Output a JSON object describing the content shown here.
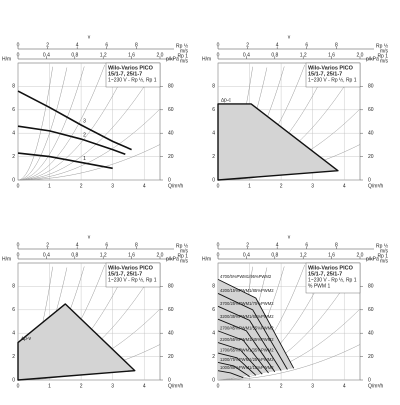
{
  "chart_data": [
    {
      "type": "line",
      "title": "Wilo-Varios PICO",
      "subtitle": "15/1-7, 25/1-7",
      "note": "1~230 V - Rp ½, Rp 1",
      "velocity_label": "v",
      "top_axes": [
        {
          "unit": "m/s",
          "pipe": "Rp ½",
          "lim": [
            0,
            9.6
          ],
          "ticks": [
            0,
            2,
            4,
            6,
            8
          ]
        },
        {
          "unit": "m/s",
          "pipe": "Rp 1",
          "lim": [
            0,
            2.0
          ],
          "ticks": [
            0,
            {
              "value": 0.4,
              "label": "0,4"
            },
            {
              "value": 0.8,
              "label": "0,8"
            },
            {
              "value": 1.2,
              "label": "1,2"
            },
            {
              "value": 1.6,
              "label": "1,6"
            },
            {
              "value": 2.0,
              "label": "2,0"
            }
          ]
        }
      ],
      "xlabel": "Q/m³/h",
      "ylabel": "H/m",
      "y2label": "p/kPa",
      "xlim": [
        0,
        4.5
      ],
      "xticks": [
        0,
        1,
        2,
        3,
        4
      ],
      "ylim": [
        0,
        10
      ],
      "yticks": [
        0,
        2,
        4,
        6,
        8
      ],
      "y2lim": [
        0,
        100
      ],
      "y2ticks": [
        0,
        20,
        40,
        60,
        80
      ],
      "grid": true,
      "series": [
        {
          "name": "1",
          "color": "#111111",
          "x": [
            0,
            1,
            2,
            3
          ],
          "values": [
            2.3,
            2.0,
            1.5,
            1.0
          ]
        },
        {
          "name": "2",
          "color": "#111111",
          "x": [
            0,
            1,
            2,
            3,
            3.4
          ],
          "values": [
            4.6,
            4.2,
            3.5,
            2.6,
            2.2
          ]
        },
        {
          "name": "3",
          "color": "#111111",
          "x": [
            0,
            1,
            2,
            3,
            3.6
          ],
          "values": [
            7.6,
            6.2,
            4.7,
            3.3,
            2.6
          ]
        }
      ]
    },
    {
      "type": "area",
      "title": "Wilo-Varios PICO",
      "subtitle": "15/1-7, 25/1-7",
      "note": "1~230 V - Rp ½, Rp 1",
      "velocity_label": "v",
      "top_axes": [
        {
          "unit": "m/s",
          "pipe": "Rp ½",
          "lim": [
            0,
            9.6
          ],
          "ticks": [
            0,
            2,
            4,
            6,
            8
          ]
        },
        {
          "unit": "m/s",
          "pipe": "Rp 1",
          "lim": [
            0,
            2.0
          ],
          "ticks": [
            0,
            {
              "value": 0.4,
              "label": "0,4"
            },
            {
              "value": 0.8,
              "label": "0,8"
            },
            {
              "value": 1.2,
              "label": "1,2"
            },
            {
              "value": 1.6,
              "label": "1,6"
            },
            {
              "value": 2.0,
              "label": "2,0"
            }
          ]
        }
      ],
      "xlabel": "Q/m³/h",
      "ylabel": "H/m",
      "y2label": "p/kPa",
      "xlim": [
        0,
        4.5
      ],
      "xticks": [
        0,
        1,
        2,
        3,
        4
      ],
      "ylim": [
        0,
        10
      ],
      "yticks": [
        0,
        2,
        4,
        6,
        8
      ],
      "y2lim": [
        0,
        100
      ],
      "y2ticks": [
        0,
        20,
        40,
        60,
        80
      ],
      "grid": true,
      "series": [
        {
          "name": "∆p-c",
          "color": "#111111",
          "fill": "#d4d4d4",
          "x": [
            0,
            1.05,
            3.8
          ],
          "values": [
            6.5,
            6.5,
            0.8
          ]
        }
      ]
    },
    {
      "type": "area",
      "title": "Wilo-Varios PICO",
      "subtitle": "15/1-7, 25/1-7",
      "note": "1~230 V - Rp ½, Rp 1",
      "velocity_label": "v",
      "top_axes": [
        {
          "unit": "m/s",
          "pipe": "Rp ½",
          "lim": [
            0,
            9.6
          ],
          "ticks": [
            0,
            2,
            4,
            6,
            8
          ]
        },
        {
          "unit": "m/s",
          "pipe": "Rp 1",
          "lim": [
            0,
            2.0
          ],
          "ticks": [
            0,
            {
              "value": 0.4,
              "label": "0,4"
            },
            {
              "value": 0.8,
              "label": "0,8"
            },
            {
              "value": 1.2,
              "label": "1,2"
            },
            {
              "value": 1.6,
              "label": "1,6"
            },
            {
              "value": 2.0,
              "label": "2,0"
            }
          ]
        }
      ],
      "xlabel": "Q/m³/h",
      "ylabel": "H/m",
      "y2label": "p/kPa",
      "xlim": [
        0,
        4.5
      ],
      "xticks": [
        0,
        1,
        2,
        3,
        4
      ],
      "ylim": [
        0,
        10
      ],
      "yticks": [
        0,
        2,
        4,
        6,
        8
      ],
      "y2lim": [
        0,
        100
      ],
      "y2ticks": [
        0,
        20,
        40,
        60,
        80
      ],
      "grid": true,
      "series": [
        {
          "name": "∆p-v",
          "color": "#111111",
          "fill": "#d4d4d4",
          "x": [
            0,
            1.5,
            3.7
          ],
          "values": [
            3.2,
            6.5,
            0.8
          ]
        }
      ]
    },
    {
      "type": "pwm",
      "title": "Wilo-Varios PICO",
      "subtitle": "15/1-7, 25/1-7",
      "note": "1~230 V - Rp ½, Rp 1",
      "note2": "% PWM 1",
      "velocity_label": "v",
      "top_axes": [
        {
          "unit": "m/s",
          "pipe": "Rp ½",
          "lim": [
            0,
            9.6
          ],
          "ticks": [
            0,
            2,
            4,
            6,
            8
          ]
        },
        {
          "unit": "m/s",
          "pipe": "Rp 1",
          "lim": [
            0,
            2.0
          ],
          "ticks": [
            0,
            {
              "value": 0.4,
              "label": "0,4"
            },
            {
              "value": 0.8,
              "label": "0,8"
            },
            {
              "value": 1.2,
              "label": "1,2"
            },
            {
              "value": 1.6,
              "label": "1,6"
            },
            {
              "value": 2.0,
              "label": "2,0"
            }
          ]
        }
      ],
      "xlabel": "Q/m³/h",
      "ylabel": "H/m",
      "y2label": "p/kPa",
      "xlim": [
        0,
        4.5
      ],
      "xticks": [
        0,
        1,
        2,
        3,
        4
      ],
      "ylim": [
        0,
        10
      ],
      "yticks": [
        0,
        2,
        4,
        6,
        8
      ],
      "y2lim": [
        0,
        100
      ],
      "y2ticks": [
        0,
        20,
        40,
        60,
        80
      ],
      "grid": true,
      "fill": "#d4d4d4",
      "series": [
        {
          "name": "4700/5%PWM1/95%PWM2",
          "color": "#111111",
          "x": [
            0,
            1.2,
            2.4
          ],
          "values": [
            8.6,
            7,
            1
          ]
        },
        {
          "name": "4200/15%PWM1/85%PWM2",
          "color": "#111111",
          "x": [
            0,
            1.1,
            2.2
          ],
          "values": [
            7.4,
            6,
            0.9
          ]
        },
        {
          "name": "3700/25%PWM1/75%PWM2",
          "color": "#111111",
          "x": [
            0,
            1,
            2
          ],
          "values": [
            6.3,
            5.1,
            0.8
          ]
        },
        {
          "name": "3200/35%PWM1/65%PWM2",
          "color": "#111111",
          "x": [
            0,
            0.9,
            1.8
          ],
          "values": [
            5.2,
            4.2,
            0.7
          ]
        },
        {
          "name": "2700/45%PWM1/55%PWM2",
          "color": "#111111",
          "x": [
            0,
            0.8,
            1.6
          ],
          "values": [
            4.2,
            3.4,
            0.6
          ]
        },
        {
          "name": "2200/55%PWM1/45%PWM2",
          "color": "#111111",
          "x": [
            0,
            0.7,
            1.4
          ],
          "values": [
            3.2,
            2.6,
            0.5
          ]
        },
        {
          "name": "1700/65%PWM1/35%PWM2",
          "color": "#111111",
          "x": [
            0,
            0.6,
            1.2
          ],
          "values": [
            2.3,
            1.9,
            0.4
          ]
        },
        {
          "name": "1200/75%PWM1/25%PWM2",
          "color": "#111111",
          "x": [
            0,
            0.5,
            1.0
          ],
          "values": [
            1.5,
            1.2,
            0.3
          ]
        },
        {
          "name": "1000/85%PWM1/15%PWM2",
          "color": "#111111",
          "x": [
            0,
            0.4,
            0.8
          ],
          "values": [
            0.8,
            0.6,
            0.2
          ]
        }
      ]
    }
  ]
}
